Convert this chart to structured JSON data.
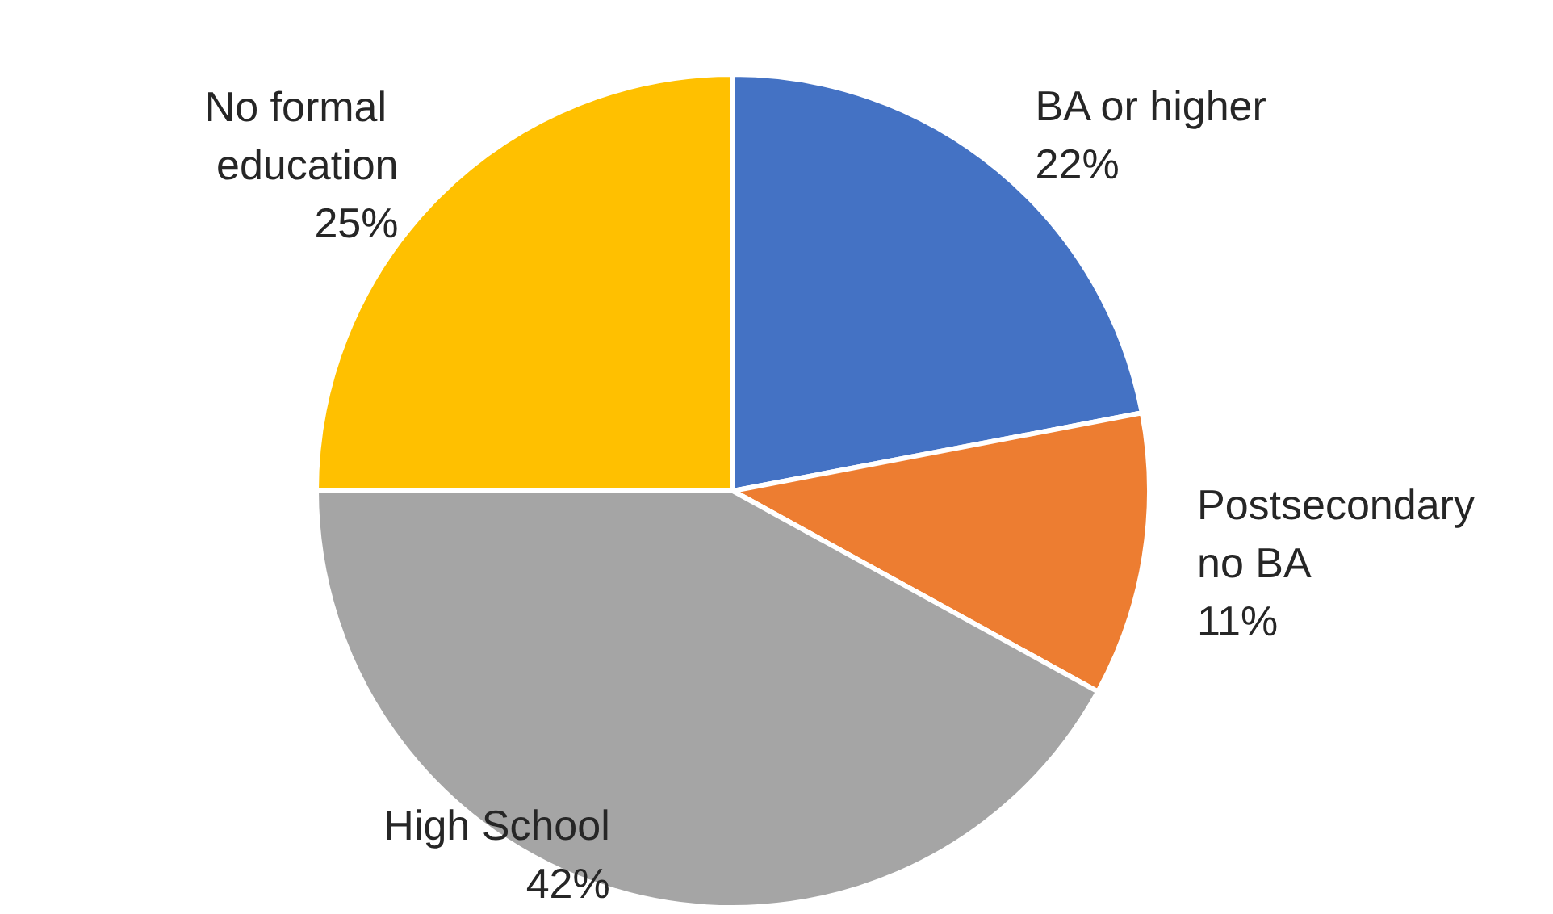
{
  "chart_data": {
    "type": "pie",
    "categories": [
      "BA or higher",
      "Postsecondary no BA",
      "High School",
      "No formal education"
    ],
    "values": [
      22,
      11,
      42,
      25
    ],
    "colors": [
      "#4472c4",
      "#ed7d31",
      "#a5a5a5",
      "#ffc000"
    ],
    "value_labels": [
      "22%",
      "11%",
      "42%",
      "25%"
    ],
    "legend": false
  }
}
